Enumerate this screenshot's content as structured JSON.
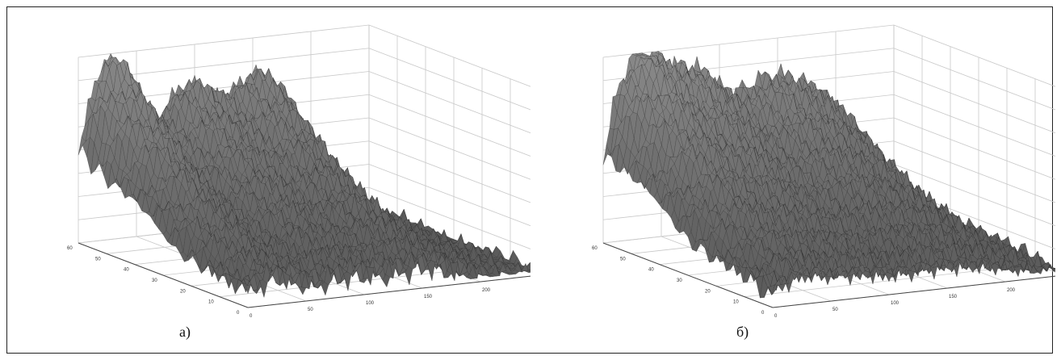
{
  "colors": {
    "surface_fill": "#6e6e6e",
    "surface_edge": "#2b2b2b",
    "grid": "#c8c8c8",
    "axis": "#444444"
  },
  "chart_data": [
    {
      "type": "surface",
      "caption": "а)",
      "grid": true,
      "x_ticks": [
        0,
        50,
        100,
        150,
        200
      ],
      "y_ticks": [
        0,
        10,
        20,
        30,
        40,
        50,
        60
      ],
      "xlim": [
        0,
        250
      ],
      "ylim": [
        0,
        60
      ],
      "zlim": [
        0,
        1
      ],
      "ridges": [
        {
          "x": 25,
          "height": 0.95
        },
        {
          "x": 90,
          "height": 0.72
        },
        {
          "x": 155,
          "height": 0.78
        }
      ]
    },
    {
      "type": "surface",
      "caption": "б)",
      "grid": true,
      "x_ticks": [
        0,
        50,
        100,
        150,
        200
      ],
      "y_ticks": [
        0,
        10,
        20,
        30,
        40,
        50,
        60
      ],
      "xlim": [
        0,
        250
      ],
      "ylim": [
        0,
        60
      ],
      "zlim": [
        0,
        1
      ],
      "ridges": [
        {
          "x": 25,
          "height": 0.9
        },
        {
          "x": 75,
          "height": 0.75
        },
        {
          "x": 135,
          "height": 0.62
        },
        {
          "x": 190,
          "height": 0.55
        }
      ]
    }
  ]
}
